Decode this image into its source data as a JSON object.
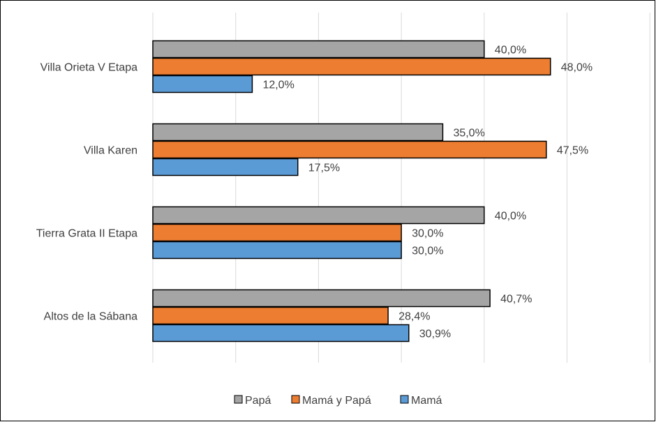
{
  "chart_data": {
    "type": "bar",
    "orientation": "horizontal",
    "categories": [
      "Villa Orieta V Etapa",
      "Villa Karen",
      "Tierra Grata II Etapa",
      "Altos de la Sábana"
    ],
    "series": [
      {
        "name": "Papá",
        "color": "#a5a5a5",
        "values": [
          40.0,
          35.0,
          40.0,
          40.7
        ],
        "labels": [
          "40,0%",
          "35,0%",
          "40,0%",
          "40,7%"
        ]
      },
      {
        "name": "Mamá y Papá",
        "color": "#ed7d31",
        "values": [
          48.0,
          47.5,
          30.0,
          28.4
        ],
        "labels": [
          "48,0%",
          "47,5%",
          "30,0%",
          "28,4%"
        ]
      },
      {
        "name": "Mamá",
        "color": "#5b9bd5",
        "values": [
          12.0,
          17.5,
          30.0,
          30.9
        ],
        "labels": [
          "12,0%",
          "17,5%",
          "30,0%",
          "30,9%"
        ]
      }
    ],
    "xlim": [
      0,
      60
    ],
    "grid": true,
    "legend_position": "bottom",
    "title": "",
    "xlabel": "",
    "ylabel": ""
  }
}
